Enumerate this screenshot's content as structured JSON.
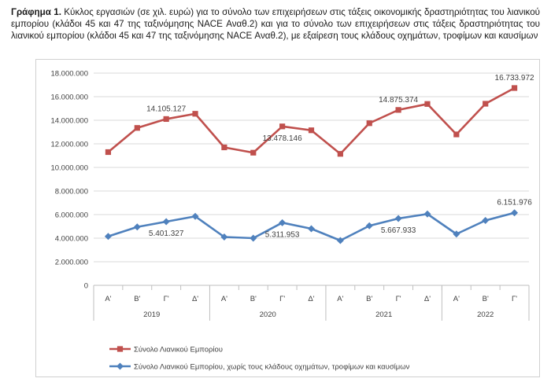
{
  "caption": {
    "prefix": "Γράφημα 1.",
    "text": " Κύκλος εργασιών (σε χιλ. ευρώ) για το σύνολο των επιχειρήσεων στις τάξεις οικονομικής δραστηριότητας του λιανικού εμπορίου (κλάδοι 45 και 47 της ταξινόμησης NACE Αναθ.2) και για το σύνολο των επιχειρήσεων στις τάξεις δραστηριότητας του λιανικού εμπορίου (κλάδοι 45 και 47 της ταξινόμησης NACE Αναθ.2), με εξαίρεση τους κλάδους οχημάτων, τροφίμων και καυσίμων"
  },
  "chart_data": {
    "type": "line",
    "title": "",
    "xlabel": "",
    "ylabel": "",
    "ylim": [
      0,
      18000000
    ],
    "yticks": [
      0,
      2000000,
      4000000,
      6000000,
      8000000,
      10000000,
      12000000,
      14000000,
      16000000,
      18000000
    ],
    "ytick_labels": [
      "0",
      "2.000.000",
      "4.000.000",
      "6.000.000",
      "8.000.000",
      "10.000.000",
      "12.000.000",
      "14.000.000",
      "16.000.000",
      "18.000.000"
    ],
    "quarters": [
      "Α'",
      "Β'",
      "Γ'",
      "Δ'",
      "Α'",
      "Β'",
      "Γ'",
      "Δ'",
      "Α'",
      "Β'",
      "Γ'",
      "Δ'",
      "Α'",
      "Β'",
      "Γ'"
    ],
    "years": [
      {
        "label": "2019",
        "span": 4
      },
      {
        "label": "2020",
        "span": 4
      },
      {
        "label": "2021",
        "span": 4
      },
      {
        "label": "2022",
        "span": 3
      }
    ],
    "grid": "horizontal",
    "legend_position": "bottom",
    "series": [
      {
        "name": "Σύνολο Λιανικού Εμπορίου",
        "color": "#c0504d",
        "marker": "square",
        "values": [
          11300000,
          13350000,
          14105127,
          14550000,
          11700000,
          11250000,
          13478146,
          13150000,
          11150000,
          13750000,
          14875374,
          15380000,
          12800000,
          15400000,
          16733972
        ],
        "data_labels": [
          {
            "index": 2,
            "text": "14.105.127",
            "pos": "above"
          },
          {
            "index": 6,
            "text": "13.478.146",
            "pos": "below"
          },
          {
            "index": 10,
            "text": "14.875.374",
            "pos": "above"
          },
          {
            "index": 14,
            "text": "16.733.972",
            "pos": "above"
          }
        ]
      },
      {
        "name": "Σύνολο Λιανικού Εμπορίου, χωρίς τους κλάδους οχημάτων, τροφίμων και καυσίμων",
        "color": "#4f81bd",
        "marker": "diamond",
        "values": [
          4150000,
          4950000,
          5401327,
          5850000,
          4100000,
          4000000,
          5311953,
          4800000,
          3800000,
          5050000,
          5667933,
          6050000,
          4350000,
          5500000,
          6151976
        ],
        "data_labels": [
          {
            "index": 2,
            "text": "5.401.327",
            "pos": "below"
          },
          {
            "index": 6,
            "text": "5.311.953",
            "pos": "below"
          },
          {
            "index": 10,
            "text": "5.667.933",
            "pos": "below"
          },
          {
            "index": 14,
            "text": "6.151.976",
            "pos": "above"
          }
        ]
      }
    ]
  }
}
